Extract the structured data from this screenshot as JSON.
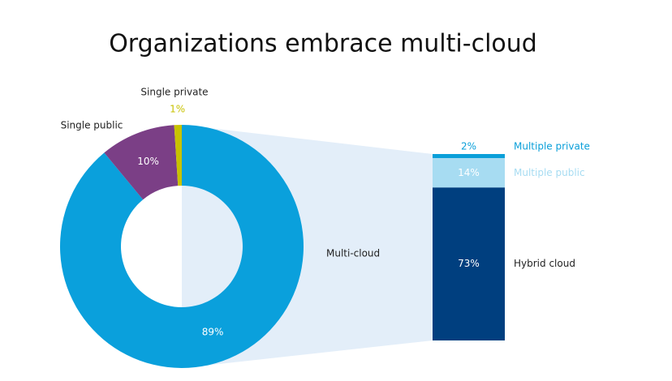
{
  "chart_data": [
    {
      "type": "donut",
      "title": "Organizations embrace multi-cloud",
      "categories": [
        "Multi-cloud",
        "Single public",
        "Single private"
      ],
      "values": [
        89,
        10,
        1
      ],
      "value_labels": [
        "89%",
        "10%",
        "1%"
      ],
      "colors": [
        "#0aa0dc",
        "#7b3f86",
        "#c8c200"
      ]
    },
    {
      "type": "stacked-bar",
      "categories": [
        "Multiple private",
        "Multiple public",
        "Hybrid cloud"
      ],
      "values": [
        2,
        14,
        73
      ],
      "value_labels": [
        "2%",
        "14%",
        "73%"
      ],
      "colors": [
        "#0a9fd9",
        "#a7dcf2",
        "#003f7f"
      ]
    }
  ]
}
